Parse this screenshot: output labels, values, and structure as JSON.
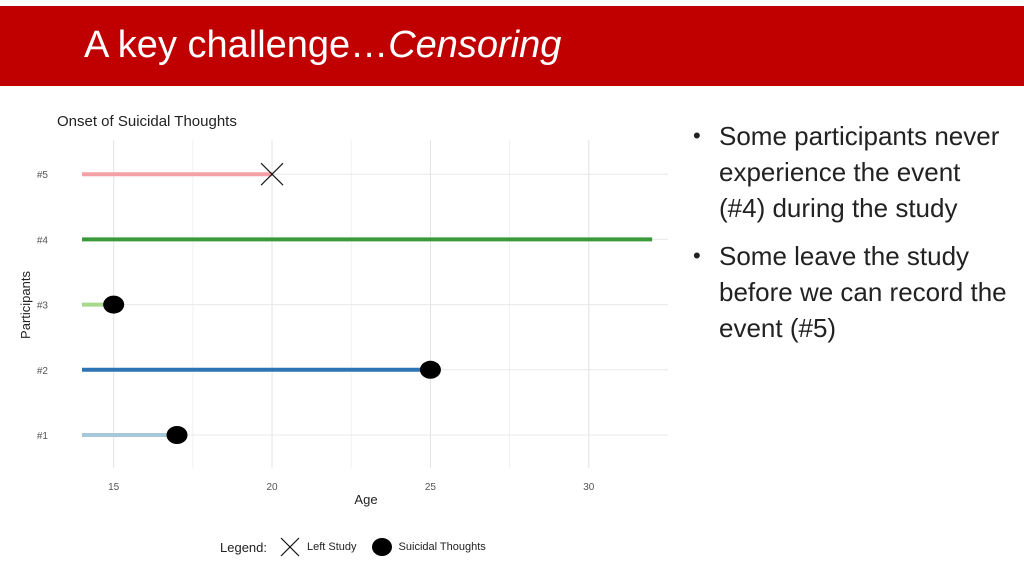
{
  "header": {
    "title_prefix": "A key challenge…",
    "title_emphasis": "Censoring",
    "background": "#c00000"
  },
  "bullets": [
    "Some participants never experience the event (#4) during the study",
    "Some leave the study before we can record the event (#5)"
  ],
  "chart_data": {
    "type": "line",
    "title": "Onset of Suicidal Thoughts",
    "xlabel": "Age",
    "ylabel": "Participants",
    "xlim": [
      14,
      32.5
    ],
    "xticks": [
      15,
      20,
      25,
      30
    ],
    "grid": true,
    "legend_position": "bottom",
    "legend_label": "Legend:",
    "legend": [
      {
        "name": "Left Study",
        "marker": "x"
      },
      {
        "name": "Suicidal Thoughts",
        "marker": "filled-circle"
      }
    ],
    "series": [
      {
        "name": "#1",
        "start": 14,
        "end": 17,
        "event": "Suicidal Thoughts",
        "color": "#a6c8d8"
      },
      {
        "name": "#2",
        "start": 14,
        "end": 25,
        "event": "Suicidal Thoughts",
        "color": "#2c75b4"
      },
      {
        "name": "#3",
        "start": 14,
        "end": 15,
        "event": "Suicidal Thoughts",
        "color": "#a8d88a"
      },
      {
        "name": "#4",
        "start": 14,
        "end": 32,
        "event": "none",
        "color": "#3a9a3a"
      },
      {
        "name": "#5",
        "start": 14,
        "end": 20,
        "event": "Left Study",
        "color": "#f4a0a4"
      }
    ]
  }
}
